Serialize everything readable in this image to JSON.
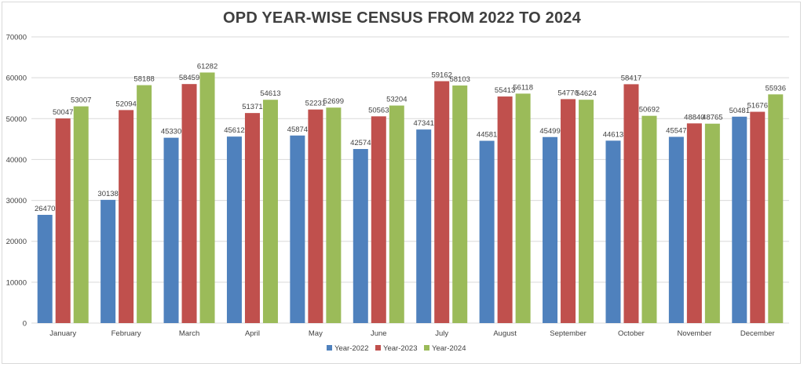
{
  "chart_data": {
    "type": "bar",
    "title": "OPD YEAR-WISE CENSUS FROM 2022 TO 2024",
    "xlabel": "",
    "ylabel": "",
    "ylim": [
      0,
      70000
    ],
    "yticks": [
      0,
      10000,
      20000,
      30000,
      40000,
      50000,
      60000,
      70000
    ],
    "grid": true,
    "legend_position": "bottom",
    "categories": [
      "January",
      "February",
      "March",
      "April",
      "May",
      "June",
      "July",
      "August",
      "September",
      "October",
      "November",
      "December"
    ],
    "series": [
      {
        "name": "Year-2022",
        "color": "#4f81bd",
        "values": [
          26470,
          30138,
          45330,
          45612,
          45874,
          42574,
          47341,
          44581,
          45499,
          44613,
          45547,
          50481
        ]
      },
      {
        "name": "Year-2023",
        "color": "#c0504d",
        "values": [
          50047,
          52094,
          58459,
          51371,
          52231,
          50563,
          59162,
          55413,
          54770,
          58417,
          48840,
          51676
        ]
      },
      {
        "name": "Year-2024",
        "color": "#9bbb59",
        "values": [
          53007,
          58188,
          61282,
          54613,
          52699,
          53204,
          58103,
          56118,
          54624,
          50692,
          48765,
          55936
        ]
      }
    ]
  }
}
